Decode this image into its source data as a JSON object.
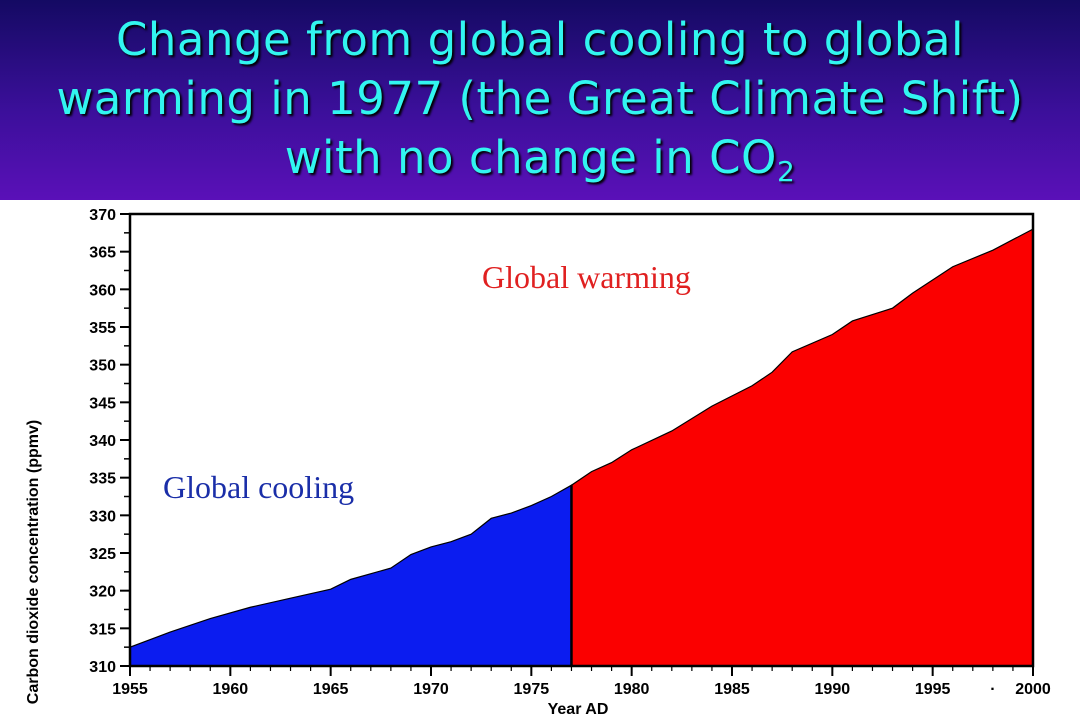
{
  "title": {
    "line1": "Change from global cooling to global",
    "line2": "warming in 1977 (the Great Climate Shift)",
    "line3_main": "with no change in CO",
    "line3_sub": "2"
  },
  "colors": {
    "header_top": "#140a63",
    "header_bottom": "#5a10b8",
    "title_text": "#32f5f0",
    "cooling": "#0b1cf0",
    "warming": "#fb0000",
    "warming_label": "#e02020",
    "cooling_label": "#1a2ea8"
  },
  "chart_data": {
    "type": "area",
    "xlabel": "Year AD",
    "ylabel": "Carbon dioxide concentration (ppmv)",
    "xlim": [
      1955,
      2000
    ],
    "ylim": [
      310,
      370
    ],
    "grid": false,
    "split_year": 1977,
    "x_tick_labels": [
      "1955",
      "1960",
      "1965",
      "1970",
      "1975",
      "1980",
      "1985",
      "1990",
      "1995",
      "·",
      "2000"
    ],
    "y_ticks": [
      310,
      315,
      320,
      325,
      330,
      335,
      340,
      345,
      350,
      355,
      360,
      365,
      370
    ],
    "annotations": [
      {
        "text": "Global warming",
        "series": "warming"
      },
      {
        "text": "Global cooling",
        "series": "cooling"
      }
    ],
    "series": [
      {
        "key": "cooling",
        "x": [
          1955,
          1957,
          1959,
          1961,
          1963,
          1965,
          1966,
          1968,
          1969,
          1970,
          1971,
          1972,
          1973,
          1974,
          1975,
          1976,
          1977
        ],
        "y": [
          312.5,
          314.5,
          316.3,
          317.8,
          319.0,
          320.2,
          321.5,
          323.0,
          324.8,
          325.8,
          326.5,
          327.5,
          329.6,
          330.3,
          331.3,
          332.5,
          334.0
        ]
      },
      {
        "key": "warming",
        "x": [
          1977,
          1978,
          1979,
          1980,
          1982,
          1984,
          1986,
          1987,
          1988,
          1990,
          1991,
          1993,
          1994,
          1996,
          1998,
          2000
        ],
        "y": [
          334.0,
          335.8,
          337.0,
          338.7,
          341.2,
          344.5,
          347.2,
          349.0,
          351.7,
          354.0,
          355.8,
          357.5,
          359.5,
          363.0,
          365.2,
          368.0
        ]
      }
    ]
  }
}
